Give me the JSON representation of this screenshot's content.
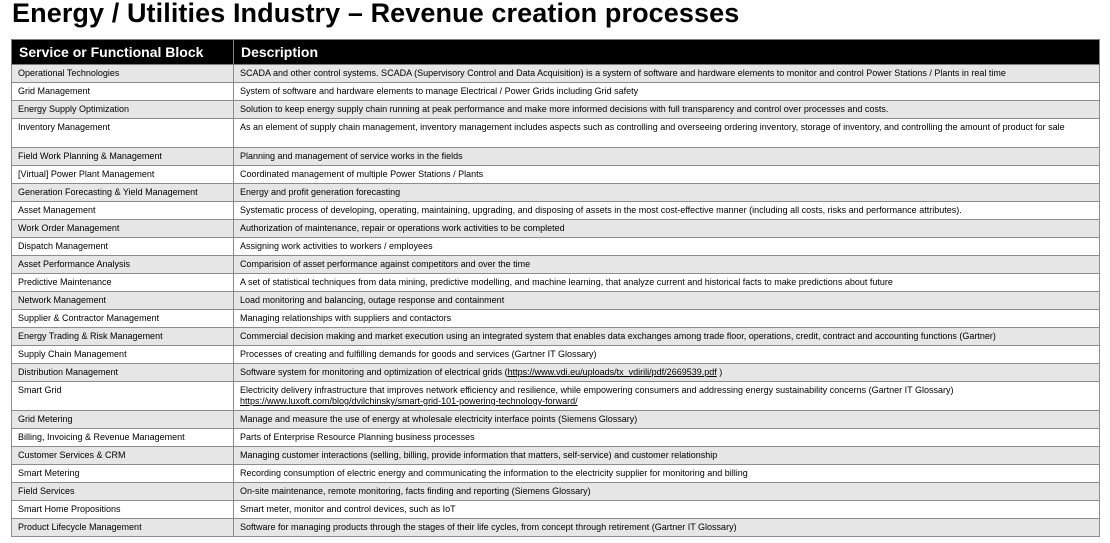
{
  "page": {
    "title": "Energy / Utilities Industry – Revenue creation processes"
  },
  "table": {
    "headers": [
      "Service or Functional Block",
      "Description"
    ],
    "rows": [
      {
        "block": "Operational Technologies",
        "desc": "SCADA and other control systems. SCADA (Supervisory Control and Data Acquisition) is a system of software and hardware elements to monitor and control Power Stations / Plants in real time"
      },
      {
        "block": "Grid Management",
        "desc": "System of software and hardware elements to manage Electrical / Power Grids including Grid safety"
      },
      {
        "block": "Energy Supply Optimization",
        "desc": "Solution to keep energy supply chain running at peak performance and make more informed decisions with full transparency and control over processes and costs."
      },
      {
        "block": "Inventory Management",
        "desc": "As an element of supply chain management, inventory management includes aspects such as controlling and overseeing ordering inventory, storage of inventory, and controlling the amount of product for sale"
      },
      {
        "block": "Field Work Planning & Management",
        "desc": "Planning and management of service works in the fields"
      },
      {
        "block": "[Virtual] Power Plant Management",
        "desc": "Coordinated management of multiple Power Stations / Plants"
      },
      {
        "block": "Generation Forecasting & Yield Management",
        "desc": "Energy and profit generation forecasting"
      },
      {
        "block": "Asset Management",
        "desc": "Systematic process of developing, operating, maintaining, upgrading, and disposing of assets in the most cost-effective manner (including all costs, risks and performance attributes)."
      },
      {
        "block": "Work Order Management",
        "desc": "Authorization of maintenance, repair or operations work activities to be completed"
      },
      {
        "block": "Dispatch Management",
        "desc": "Assigning work activities to workers / employees"
      },
      {
        "block": "Asset Performance Analysis",
        "desc": "Comparision of asset performance against competitors and over the time"
      },
      {
        "block": "Predictive Maintenance",
        "desc": "A set of statistical techniques from data mining, predictive modelling, and machine learning, that analyze current and historical facts to make predictions about future"
      },
      {
        "block": "Network Management",
        "desc": "Load monitoring and balancing, outage response and containment"
      },
      {
        "block": "Supplier & Contractor Management",
        "desc": "Managing relationships with suppliers and contactors"
      },
      {
        "block": "Energy Trading & Risk Management",
        "desc": "Commercial decision making and market execution using an integrated system that enables data exchanges among trade floor, operations, credit, contract and accounting functions (Gartner)"
      },
      {
        "block": "Supply Chain Management",
        "desc": "Processes of creating and fulfilling demands for goods and services (Gartner IT Glossary)"
      },
      {
        "block": "Distribution Management",
        "desc": "Software system for monitoring and optimization of electrical grids (",
        "link": "https://www.vdi.eu/uploads/tx_vdirili/pdf/2669539.pdf",
        "suffix": " )"
      },
      {
        "block": "Smart Grid",
        "desc": "Electricity delivery infrastructure that improves network efficiency and resilience, while empowering consumers and addressing energy sustainability concerns (Gartner IT Glossary)",
        "link2": "https://www.luxoft.com/blog/dvilchinsky/smart-grid-101-powering-technology-forward/"
      },
      {
        "block": "Grid Metering",
        "desc": "Manage and measure the use of energy at wholesale electricity interface points (Siemens Glossary)"
      },
      {
        "block": "Billing, Invoicing & Revenue Management",
        "desc": "Parts of Enterprise Resource Planning business processes"
      },
      {
        "block": "Customer Services & CRM",
        "desc": "Managing customer interactions (selling, billing, provide information that matters, self-service) and customer relationship"
      },
      {
        "block": "Smart Metering",
        "desc": "Recording consumption of electric energy and communicating the information to the electricity supplier for monitoring and billing"
      },
      {
        "block": "Field Services",
        "desc": "On-site maintenance, remote monitoring, facts finding and reporting (Siemens Glossary)"
      },
      {
        "block": "Smart Home Propositions",
        "desc": "Smart meter, monitor and control devices, such as IoT"
      },
      {
        "block": "Product Lifecycle Management",
        "desc": "Software for managing products through the stages of their life cycles, from concept through retirement (Gartner IT Glossary)"
      }
    ]
  }
}
